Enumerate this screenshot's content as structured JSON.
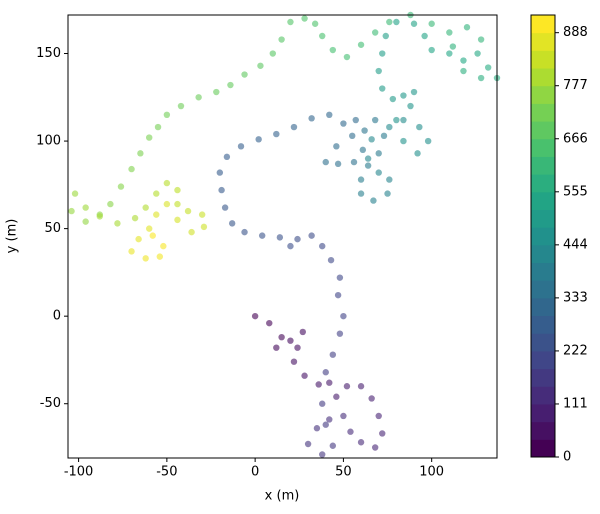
{
  "chart_data": {
    "type": "scatter",
    "xlabel": "x (m)",
    "ylabel": "y (m)",
    "xlim": [
      -106,
      137
    ],
    "xticks": [
      -100,
      -50,
      0,
      50,
      100
    ],
    "ylim": [
      -81,
      172
    ],
    "yticks": [
      -50,
      0,
      50,
      100,
      150
    ],
    "colormap": "viridis",
    "clim": [
      0,
      925
    ],
    "levels": 25,
    "cticks": [
      0,
      111,
      222,
      333,
      444,
      555,
      666,
      777,
      888
    ],
    "x": [
      0,
      8,
      15,
      12,
      20,
      27,
      24,
      22,
      28,
      36,
      42,
      46,
      52,
      60,
      66,
      70,
      72,
      68,
      60,
      54,
      50,
      42,
      35,
      30,
      38,
      44,
      40,
      38,
      40,
      44,
      48,
      50,
      47,
      48,
      43,
      38,
      32,
      24,
      20,
      14,
      4,
      -6,
      -13,
      -17,
      -19,
      -20,
      -16,
      -8,
      2,
      12,
      22,
      32,
      42,
      50,
      57,
      55,
      46,
      40,
      47,
      56,
      61,
      62,
      68,
      73,
      70,
      64,
      60,
      60,
      67,
      75,
      76,
      70,
      64,
      66,
      76,
      84,
      93,
      98,
      92,
      84,
      80,
      88,
      90,
      84,
      78,
      72,
      70,
      72,
      74,
      80,
      90,
      96,
      100,
      110,
      118,
      126,
      132,
      137,
      128,
      118,
      112,
      120,
      128,
      110,
      100,
      88,
      76,
      68,
      60,
      52,
      44,
      38,
      34,
      28,
      20,
      15,
      10,
      3,
      -6,
      -14,
      -22,
      -32,
      -42,
      -50,
      -55,
      -60,
      -65,
      -70,
      -76,
      -82,
      -88,
      -96,
      -104,
      -102,
      -96,
      -88,
      -78,
      -68,
      -62,
      -56,
      -50,
      -44,
      -44,
      -38,
      -30,
      -29,
      -36,
      -44,
      -50,
      -56,
      -60,
      -66,
      -70,
      -62,
      -54,
      -52,
      -58
    ],
    "y": [
      0,
      -4,
      -12,
      -18,
      -14,
      -9,
      -18,
      -26,
      -34,
      -39,
      -38,
      -46,
      -40,
      -40,
      -47,
      -57,
      -67,
      -75,
      -72,
      -66,
      -57,
      -59,
      -64,
      -73,
      -79,
      -74,
      -62,
      -50,
      -32,
      -22,
      -10,
      0,
      12,
      22,
      32,
      40,
      46,
      44,
      40,
      45,
      46,
      48,
      53,
      62,
      72,
      82,
      91,
      97,
      101,
      104,
      108,
      113,
      115,
      110,
      112,
      103,
      97,
      88,
      87,
      88,
      95,
      106,
      112,
      103,
      93,
      86,
      78,
      70,
      66,
      70,
      78,
      82,
      90,
      101,
      108,
      112,
      108,
      100,
      93,
      100,
      112,
      120,
      128,
      126,
      124,
      130,
      140,
      150,
      160,
      168,
      167,
      160,
      152,
      150,
      146,
      150,
      142,
      136,
      136,
      140,
      154,
      165,
      158,
      162,
      167,
      172,
      168,
      162,
      155,
      148,
      152,
      160,
      167,
      170,
      168,
      158,
      150,
      143,
      138,
      132,
      128,
      125,
      120,
      115,
      108,
      102,
      93,
      84,
      74,
      64,
      58,
      54,
      60,
      70,
      62,
      57,
      53,
      56,
      62,
      70,
      76,
      72,
      64,
      60,
      58,
      51,
      48,
      55,
      64,
      58,
      50,
      44,
      37,
      33,
      34,
      40,
      46
    ],
    "c": [
      0,
      6,
      12,
      18,
      24,
      30,
      35,
      41,
      47,
      53,
      59,
      65,
      71,
      77,
      83,
      89,
      94,
      100,
      106,
      112,
      118,
      124,
      130,
      136,
      142,
      148,
      153,
      159,
      165,
      171,
      177,
      183,
      189,
      195,
      201,
      207,
      212,
      218,
      224,
      230,
      236,
      242,
      248,
      254,
      260,
      266,
      271,
      277,
      283,
      289,
      295,
      301,
      307,
      313,
      319,
      325,
      330,
      336,
      342,
      348,
      354,
      360,
      366,
      372,
      378,
      384,
      389,
      395,
      401,
      407,
      413,
      419,
      425,
      431,
      437,
      443,
      448,
      454,
      460,
      466,
      472,
      478,
      484,
      490,
      496,
      502,
      507,
      513,
      519,
      525,
      531,
      537,
      543,
      549,
      555,
      561,
      566,
      572,
      578,
      584,
      590,
      596,
      602,
      608,
      614,
      620,
      625,
      631,
      637,
      643,
      649,
      655,
      661,
      667,
      673,
      679,
      684,
      690,
      696,
      702,
      708,
      714,
      720,
      726,
      732,
      738,
      743,
      749,
      755,
      761,
      767,
      773,
      779,
      785,
      791,
      797,
      802,
      808,
      814,
      820,
      826,
      832,
      838,
      844,
      850,
      856,
      861,
      867,
      873,
      879,
      885,
      891,
      897,
      903,
      909,
      915,
      920
    ]
  }
}
